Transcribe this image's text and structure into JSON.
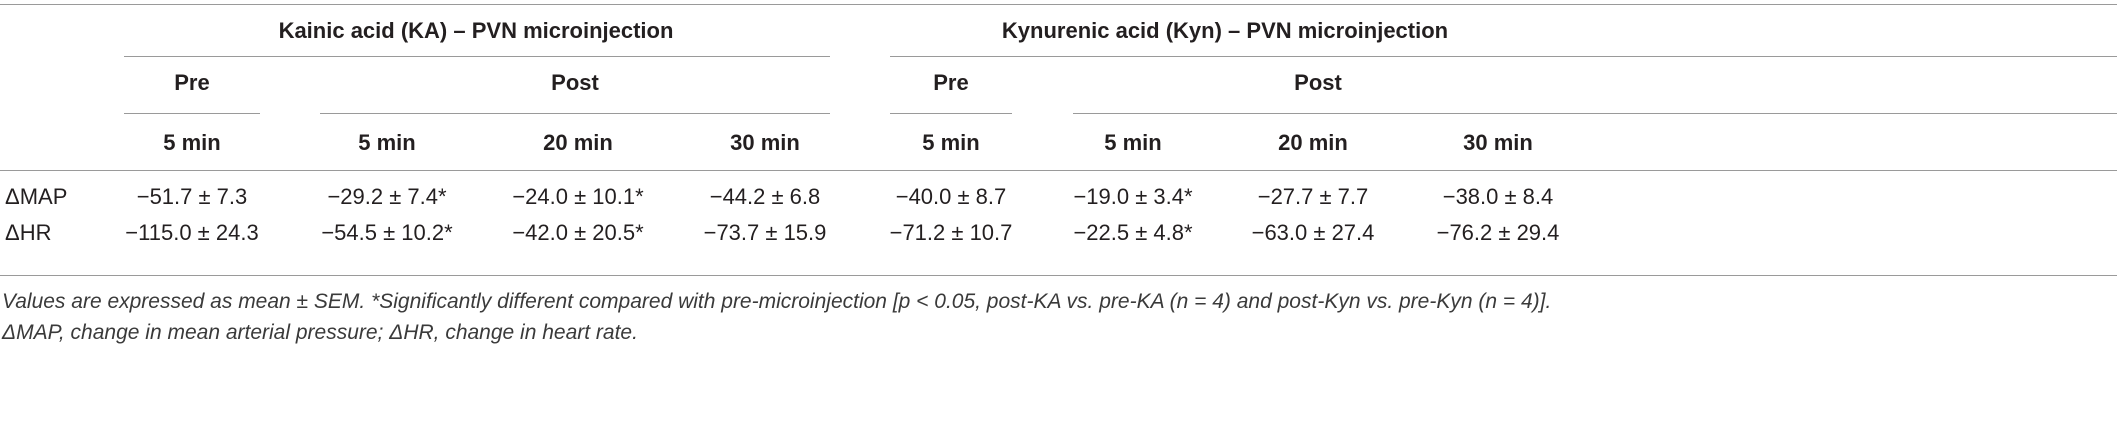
{
  "table": {
    "group_headers": [
      "Kainic acid (KA) – PVN microinjection",
      "Kynurenic acid (Kyn) – PVN microinjection"
    ],
    "phase_headers": [
      "Pre",
      "Post",
      "Pre",
      "Post"
    ],
    "time_headers": [
      "5 min",
      "5 min",
      "20 min",
      "30 min",
      "5 min",
      "5 min",
      "20 min",
      "30 min"
    ],
    "rows": [
      {
        "label": "ΔMAP",
        "cells": [
          "−51.7 ± 7.3",
          "−29.2 ± 7.4*",
          "−24.0 ± 10.1*",
          "−44.2 ± 6.8",
          "−40.0 ± 8.7",
          "−19.0 ± 3.4*",
          "−27.7 ± 7.7",
          "−38.0 ± 8.4"
        ]
      },
      {
        "label": "ΔHR",
        "cells": [
          "−115.0 ± 24.3",
          "−54.5 ± 10.2*",
          "−42.0 ± 20.5*",
          "−73.7 ± 15.9",
          "−71.2 ± 10.7",
          "−22.5 ± 4.8*",
          "−63.0 ± 27.4",
          "−76.2 ± 29.4"
        ]
      }
    ]
  },
  "footnote": {
    "line1": "Values are expressed as mean ± SEM. *Significantly different compared with pre-microinjection [p < 0.05, post-KA vs. pre-KA (n = 4) and post-Kyn vs. pre-Kyn (n = 4)].",
    "line2": "ΔMAP, change in mean arterial pressure; ΔHR, change in heart rate."
  }
}
